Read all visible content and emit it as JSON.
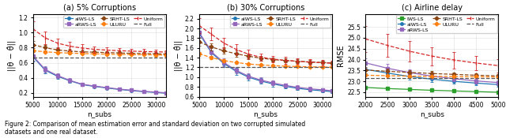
{
  "caption": "Figure 2: Comparison of mean estimation error and standard deviation on two corrupted simulated\ndatasets and one real dataset.",
  "chart_data": [
    {
      "type": "line",
      "title": "(a) 5% Corruptions",
      "y_label": "||θ − θ̂||",
      "x_label": "n_subs",
      "xlim": [
        5000,
        32000
      ],
      "ylim": [
        0.15,
        1.25
      ],
      "xticks": [
        5000,
        10000,
        15000,
        20000,
        25000,
        30000
      ],
      "yticks": [
        0.2,
        0.4,
        0.6,
        0.8,
        1.0,
        1.2
      ],
      "grid": true,
      "legend": "upper right",
      "series": [
        {
          "name": "aIWS-LS",
          "color": "#1f77b4",
          "line_style": "solid",
          "marker": "circle",
          "x": [
            5000,
            7500,
            10000,
            12500,
            15000,
            17500,
            20000,
            22500,
            25000,
            27500,
            30000,
            32000
          ],
          "values": [
            0.68,
            0.5,
            0.42,
            0.36,
            0.31,
            0.285,
            0.265,
            0.245,
            0.23,
            0.215,
            0.205,
            0.195
          ],
          "errors": [
            0.06,
            0.04,
            0.032,
            0.026,
            0.022,
            0.018,
            0.016,
            0.014,
            0.013,
            0.012,
            0.011,
            0.01
          ]
        },
        {
          "name": "aRWS-LS",
          "color": "#9467bd",
          "line_style": "solid",
          "marker": "square",
          "x": [
            5000,
            7500,
            10000,
            12500,
            15000,
            17500,
            20000,
            22500,
            25000,
            27500,
            30000,
            32000
          ],
          "values": [
            0.69,
            0.51,
            0.43,
            0.365,
            0.315,
            0.29,
            0.27,
            0.25,
            0.235,
            0.22,
            0.21,
            0.2
          ],
          "errors": [
            0.06,
            0.04,
            0.032,
            0.026,
            0.022,
            0.018,
            0.016,
            0.014,
            0.013,
            0.012,
            0.011,
            0.01
          ]
        },
        {
          "name": "SRHT-LS",
          "color": "#8B4513",
          "line_style": "dashed",
          "marker": "diamond",
          "x": [
            5000,
            7500,
            10000,
            12500,
            15000,
            17500,
            20000,
            22500,
            25000,
            27500,
            30000,
            32000
          ],
          "values": [
            0.84,
            0.8,
            0.77,
            0.755,
            0.745,
            0.74,
            0.735,
            0.73,
            0.725,
            0.722,
            0.718,
            0.715
          ],
          "errors": [
            0.05,
            0.04,
            0.035,
            0.03,
            0.025,
            0.022,
            0.02,
            0.018,
            0.016,
            0.015,
            0.014,
            0.013
          ]
        },
        {
          "name": "ULURU",
          "color": "#ff7f0e",
          "line_style": "dashed",
          "marker": "diamond",
          "x": [
            5000,
            7500,
            10000,
            12500,
            15000,
            17500,
            20000,
            22500,
            25000,
            27500,
            30000,
            32000
          ],
          "values": [
            0.76,
            0.745,
            0.735,
            0.728,
            0.722,
            0.718,
            0.714,
            0.711,
            0.708,
            0.706,
            0.704,
            0.702
          ],
          "errors": [
            0.018,
            0.016,
            0.014,
            0.013,
            0.012,
            0.011,
            0.01,
            0.01,
            0.009,
            0.009,
            0.008,
            0.008
          ]
        },
        {
          "name": "Uniform",
          "color": "#d62728",
          "line_style": "dashed",
          "marker": "vline",
          "x": [
            5000,
            7500,
            10000,
            12500,
            15000,
            17500,
            20000,
            22500,
            25000,
            27500,
            30000,
            32000
          ],
          "values": [
            1.05,
            0.93,
            0.86,
            0.82,
            0.795,
            0.778,
            0.768,
            0.76,
            0.754,
            0.749,
            0.745,
            0.742
          ],
          "errors": [
            0.1,
            0.08,
            0.065,
            0.055,
            0.048,
            0.042,
            0.038,
            0.035,
            0.032,
            0.03,
            0.028,
            0.026
          ]
        },
        {
          "name": "Full",
          "color": "#555555",
          "line_style": "dashed",
          "x": [
            5000,
            32000
          ],
          "values": [
            0.665,
            0.665
          ]
        }
      ]
    },
    {
      "type": "line",
      "title": "(b) 30% Corruptions",
      "y_label": "||θ − θ̂||",
      "x_label": "n_subs",
      "xlim": [
        5000,
        32000
      ],
      "ylim": [
        0.6,
        2.3
      ],
      "xticks": [
        5000,
        10000,
        15000,
        20000,
        25000,
        30000
      ],
      "yticks": [
        0.6,
        0.8,
        1.0,
        1.2,
        1.4,
        1.6,
        1.8,
        2.0,
        2.2
      ],
      "grid": true,
      "legend": "upper right",
      "series": [
        {
          "name": "aIWS-LS",
          "color": "#1f77b4",
          "line_style": "solid",
          "marker": "circle",
          "x": [
            5000,
            7500,
            10000,
            12500,
            15000,
            17500,
            20000,
            22500,
            25000,
            27500,
            30000,
            32000
          ],
          "values": [
            1.9,
            1.5,
            1.28,
            1.12,
            1.0,
            0.92,
            0.86,
            0.81,
            0.77,
            0.74,
            0.72,
            0.7
          ],
          "errors": [
            0.1,
            0.09,
            0.08,
            0.07,
            0.06,
            0.055,
            0.05,
            0.045,
            0.04,
            0.037,
            0.034,
            0.032
          ]
        },
        {
          "name": "aRWS-LS",
          "color": "#9467bd",
          "line_style": "solid",
          "marker": "square",
          "x": [
            5000,
            7500,
            10000,
            12500,
            15000,
            17500,
            20000,
            22500,
            25000,
            27500,
            30000,
            32000
          ],
          "values": [
            1.92,
            1.52,
            1.3,
            1.14,
            1.02,
            0.94,
            0.88,
            0.83,
            0.79,
            0.76,
            0.74,
            0.72
          ],
          "errors": [
            0.1,
            0.09,
            0.08,
            0.07,
            0.06,
            0.055,
            0.05,
            0.045,
            0.04,
            0.037,
            0.034,
            0.032
          ]
        },
        {
          "name": "SRHT-LS",
          "color": "#8B4513",
          "line_style": "dashed",
          "marker": "diamond",
          "x": [
            5000,
            7500,
            10000,
            12500,
            15000,
            17500,
            20000,
            22500,
            25000,
            27500,
            30000,
            32000
          ],
          "values": [
            1.72,
            1.62,
            1.54,
            1.48,
            1.43,
            1.39,
            1.36,
            1.34,
            1.325,
            1.312,
            1.3,
            1.29
          ],
          "errors": [
            0.08,
            0.07,
            0.065,
            0.06,
            0.055,
            0.05,
            0.045,
            0.042,
            0.038,
            0.035,
            0.032,
            0.03
          ]
        },
        {
          "name": "ULURU",
          "color": "#ff7f0e",
          "line_style": "dashed",
          "marker": "diamond",
          "x": [
            5000,
            7500,
            10000,
            12500,
            15000,
            17500,
            20000,
            22500,
            25000,
            27500,
            30000,
            32000
          ],
          "values": [
            1.48,
            1.4,
            1.34,
            1.3,
            1.27,
            1.25,
            1.235,
            1.225,
            1.218,
            1.212,
            1.207,
            1.203
          ],
          "errors": [
            0.04,
            0.035,
            0.03,
            0.027,
            0.024,
            0.022,
            0.02,
            0.018,
            0.017,
            0.016,
            0.015,
            0.014
          ]
        },
        {
          "name": "Uniform",
          "color": "#d62728",
          "line_style": "dashed",
          "marker": "vline",
          "x": [
            5000,
            7500,
            10000,
            12500,
            15000,
            17500,
            20000,
            22500,
            25000,
            27500,
            30000,
            32000
          ],
          "values": [
            2.06,
            1.88,
            1.7,
            1.57,
            1.47,
            1.41,
            1.37,
            1.345,
            1.325,
            1.308,
            1.295,
            1.285
          ],
          "errors": [
            0.15,
            0.13,
            0.11,
            0.1,
            0.09,
            0.08,
            0.07,
            0.065,
            0.06,
            0.055,
            0.05,
            0.048
          ]
        },
        {
          "name": "Full",
          "color": "#555555",
          "line_style": "dashed",
          "x": [
            5000,
            32000
          ],
          "values": [
            1.21,
            1.21
          ]
        }
      ]
    },
    {
      "type": "line",
      "title": "(c) Airline delay",
      "y_label": "RMSE",
      "x_label": "n_subs",
      "xlim": [
        2000,
        5000
      ],
      "ylim": [
        22.3,
        26.1
      ],
      "xticks": [
        2000,
        2500,
        3000,
        3500,
        4000,
        4500,
        5000
      ],
      "yticks": [
        22.5,
        23.0,
        23.5,
        24.0,
        24.5,
        25.0,
        25.5
      ],
      "grid": true,
      "legend": "upper right",
      "series": [
        {
          "name": "IWS-LS",
          "color": "#2ca02c",
          "line_style": "solid",
          "marker": "square",
          "x": [
            2000,
            2500,
            3000,
            3500,
            4000,
            4500,
            5000
          ],
          "values": [
            22.72,
            22.67,
            22.63,
            22.59,
            22.56,
            22.53,
            22.5
          ],
          "errors": [
            0.04,
            0.035,
            0.03,
            0.028,
            0.025,
            0.022,
            0.02
          ]
        },
        {
          "name": "aIWS-LS",
          "color": "#1f77b4",
          "line_style": "solid",
          "marker": "circle",
          "x": [
            2000,
            2500,
            3000,
            3500,
            4000,
            4500,
            5000
          ],
          "values": [
            23.55,
            23.38,
            23.22,
            23.1,
            23.0,
            22.92,
            22.85
          ],
          "errors": [
            0.2,
            0.17,
            0.15,
            0.13,
            0.11,
            0.1,
            0.09
          ]
        },
        {
          "name": "aRWS-LS",
          "color": "#9467bd",
          "line_style": "solid",
          "marker": "square",
          "x": [
            2000,
            2500,
            3000,
            3500,
            4000,
            4500,
            5000
          ],
          "values": [
            23.85,
            23.6,
            23.4,
            23.24,
            23.12,
            23.02,
            22.94
          ],
          "errors": [
            0.22,
            0.19,
            0.16,
            0.14,
            0.12,
            0.11,
            0.1
          ]
        },
        {
          "name": "SRHT-LS",
          "color": "#8B4513",
          "line_style": "dashed",
          "marker": "diamond",
          "x": [
            2000,
            2500,
            3000,
            3500,
            4000,
            4500,
            5000
          ],
          "values": [
            23.52,
            23.46,
            23.41,
            23.36,
            23.32,
            23.28,
            23.25
          ],
          "errors": [
            0.14,
            0.12,
            0.11,
            0.1,
            0.09,
            0.085,
            0.08
          ]
        },
        {
          "name": "ULURU",
          "color": "#ff7f0e",
          "line_style": "dashed",
          "marker": "diamond",
          "x": [
            2000,
            2500,
            3000,
            3500,
            4000,
            4500,
            5000
          ],
          "values": [
            23.28,
            23.26,
            23.24,
            23.23,
            23.22,
            23.21,
            23.2
          ],
          "errors": [
            0.05,
            0.045,
            0.04,
            0.038,
            0.035,
            0.032,
            0.03
          ]
        },
        {
          "name": "Uniform",
          "color": "#d62728",
          "line_style": "dashed",
          "marker": "vline",
          "x": [
            2000,
            2500,
            3000,
            3500,
            4000,
            4500,
            5000
          ],
          "values": [
            24.95,
            24.65,
            24.38,
            24.16,
            23.98,
            23.84,
            23.72
          ],
          "errors": [
            0.6,
            0.52,
            0.46,
            0.42,
            0.38,
            0.34,
            0.31
          ]
        },
        {
          "name": "Full",
          "color": "#555555",
          "line_style": "dashed",
          "x": [
            2000,
            5000
          ],
          "values": [
            23.14,
            23.14
          ]
        }
      ]
    }
  ]
}
